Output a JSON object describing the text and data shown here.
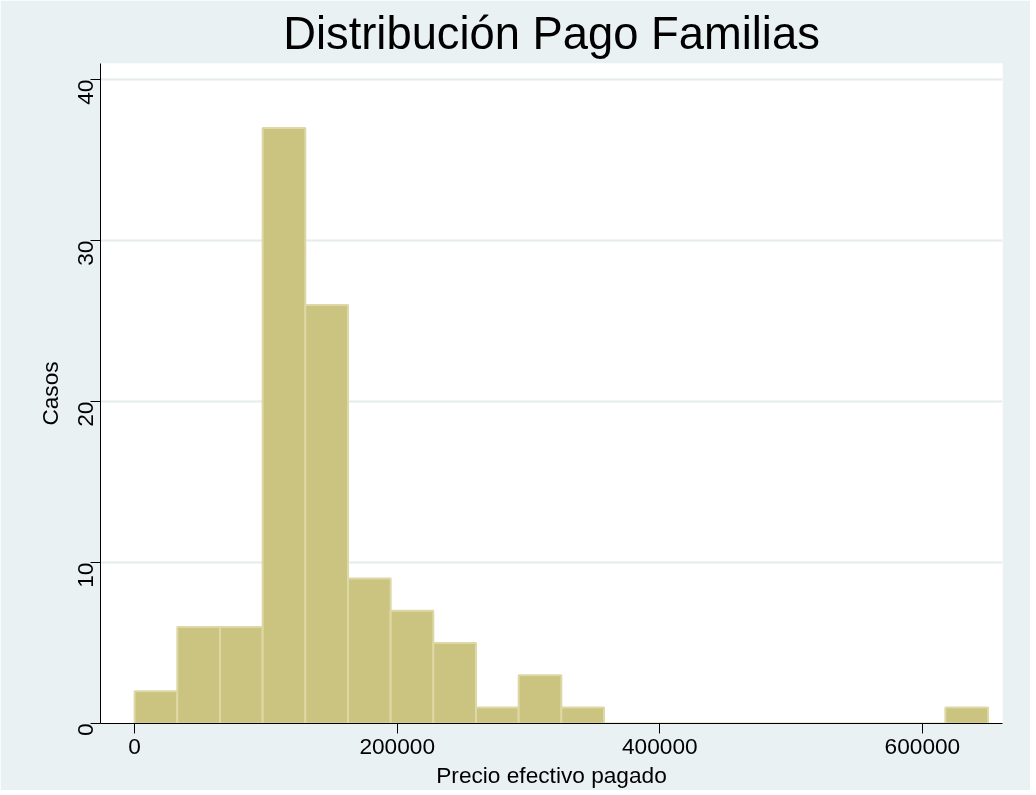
{
  "chart_data": {
    "type": "histogram",
    "title": "Distribución Pago Familias",
    "xlabel": "Precio efectivo pagado",
    "ylabel": "Casos",
    "bins": [
      0,
      32500,
      65000,
      97500,
      130000,
      162500,
      195000,
      227500,
      260000,
      292500,
      325000,
      357500,
      390000,
      422500,
      455000,
      487500,
      520000,
      552500,
      585000,
      617500,
      650000
    ],
    "values": [
      2,
      6,
      6,
      37,
      26,
      9,
      7,
      5,
      1,
      3,
      1,
      0,
      0,
      0,
      0,
      0,
      0,
      0,
      0,
      1
    ],
    "color": "#cbc380",
    "xlim": [
      -26000,
      661000
    ],
    "ylim": [
      0,
      41
    ],
    "xticks": [
      0,
      200000,
      400000,
      600000
    ],
    "yticks": [
      0,
      10,
      20,
      30,
      40
    ],
    "grid": "y"
  }
}
